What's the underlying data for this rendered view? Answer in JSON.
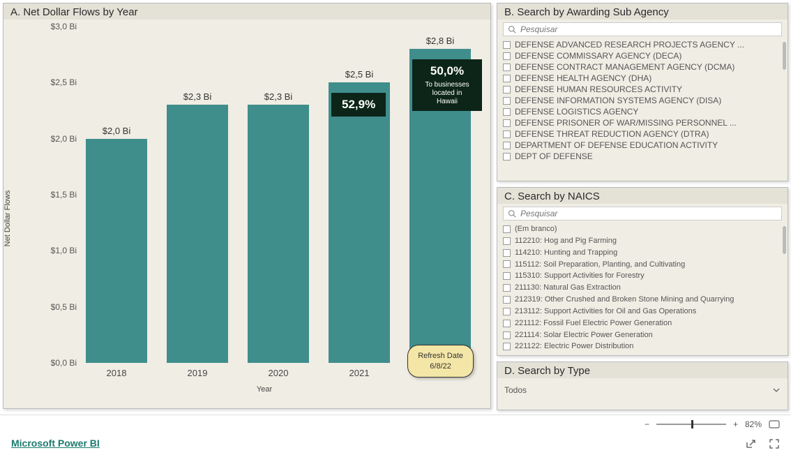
{
  "chart": {
    "title": "A. Net Dollar Flows by Year",
    "yaxis_label": "Net Dollar Flows",
    "xaxis_label": "Year",
    "ylim": [
      0,
      3.0
    ],
    "yticks": [
      {
        "v": 0.0,
        "label": "$0,0 Bi"
      },
      {
        "v": 0.5,
        "label": "$0,5 Bi"
      },
      {
        "v": 1.0,
        "label": "$1,0 Bi"
      },
      {
        "v": 1.5,
        "label": "$1,5 Bi"
      },
      {
        "v": 2.0,
        "label": "$2,0 Bi"
      },
      {
        "v": 2.5,
        "label": "$2,5 Bi"
      },
      {
        "v": 3.0,
        "label": "$3,0 Bi"
      }
    ],
    "categories": [
      "2018",
      "2019",
      "2020",
      "2021",
      "2022"
    ],
    "values": [
      2.0,
      2.3,
      2.3,
      2.5,
      2.8
    ],
    "value_labels": [
      "$2,0 Bi",
      "$2,3 Bi",
      "$2,3 Bi",
      "$2,5 Bi",
      "$2,8 Bi"
    ],
    "bar_color": "#3f8e8c",
    "background_color": "#f0ede4",
    "callouts": [
      {
        "text": "52,9%",
        "sub": null,
        "bar_index": 3
      },
      {
        "text": "50,0%",
        "sub": "To businesses located in Hawaii",
        "bar_index": 4
      }
    ],
    "refresh": {
      "label": "Refresh Date",
      "value": "6/8/22"
    }
  },
  "slicer_b": {
    "title": "B. Search by Awarding Sub Agency",
    "search_placeholder": "Pesquisar",
    "items": [
      "DEFENSE ADVANCED RESEARCH PROJECTS AGENCY ...",
      "DEFENSE COMMISSARY AGENCY (DECA)",
      "DEFENSE CONTRACT MANAGEMENT AGENCY (DCMA)",
      "DEFENSE HEALTH AGENCY (DHA)",
      "DEFENSE HUMAN RESOURCES ACTIVITY",
      "DEFENSE INFORMATION SYSTEMS AGENCY (DISA)",
      "DEFENSE LOGISTICS AGENCY",
      "DEFENSE PRISONER OF WAR/MISSING PERSONNEL ...",
      "DEFENSE THREAT REDUCTION AGENCY (DTRA)",
      "DEPARTMENT OF DEFENSE EDUCATION ACTIVITY",
      "DEPT OF DEFENSE"
    ]
  },
  "slicer_c": {
    "title": "C. Search by NAICS",
    "search_placeholder": "Pesquisar",
    "items": [
      "(Em branco)",
      "112210: Hog and Pig Farming",
      "114210: Hunting and Trapping",
      "115112: Soil Preparation, Planting, and Cultivating",
      "115310: Support Activities for Forestry",
      "211130: Natural Gas Extraction",
      "212319: Other Crushed and Broken Stone Mining and Quarrying",
      "213112: Support Activities for Oil and Gas Operations",
      "221112: Fossil Fuel Electric Power Generation",
      "221114: Solar Electric Power Generation",
      "221122: Electric Power Distribution"
    ]
  },
  "slicer_d": {
    "title": "D. Search by Type",
    "selected": "Todos"
  },
  "footer": {
    "zoom_pct": "82%",
    "zoom_thumb_left_pct": 50,
    "brand": "Microsoft Power BI"
  }
}
